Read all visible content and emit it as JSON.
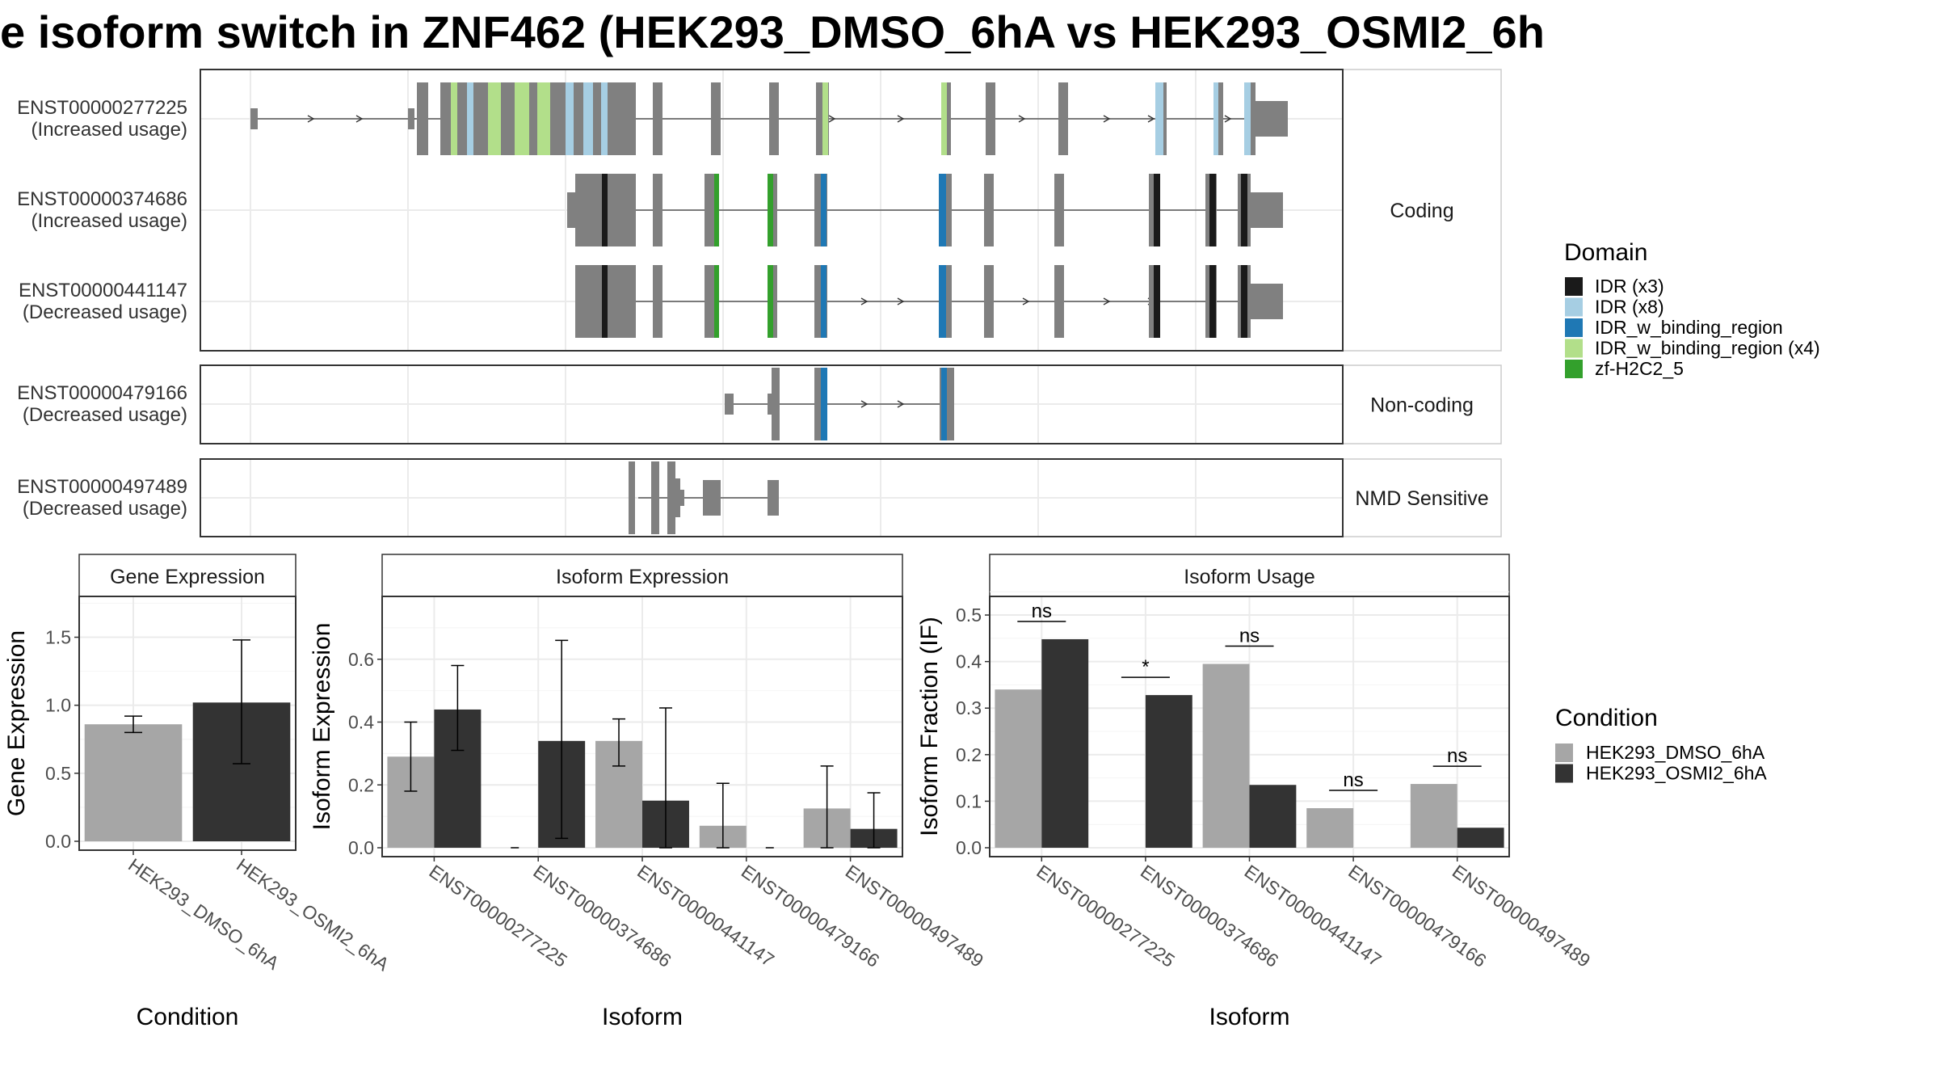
{
  "title": "e isoform switch in ZNF462 (HEK293_DMSO_6hA vs HEK293_OSMI2_6h",
  "colors": {
    "exon": "#808080",
    "dmso": "#a6a6a6",
    "osmi": "#333333",
    "IDR": "#1a1a1a",
    "IDR_light": "#a6cee3",
    "IDR_w_binding_region": "#1f78b4",
    "IDR_w_binding_region_light": "#b2df8a",
    "zf-H2C2_5": "#33a02c"
  },
  "transcript_plot": {
    "groups": [
      {
        "label": "Coding",
        "isoforms": [
          {
            "id": "ENST00000277225",
            "note": "(Increased usage)"
          },
          {
            "id": "ENST00000374686",
            "note": "(Increased usage)"
          },
          {
            "id": "ENST00000441147",
            "note": "(Decreased usage)"
          }
        ]
      },
      {
        "label": "Non-coding",
        "isoforms": [
          {
            "id": "ENST00000479166",
            "note": "(Decreased usage)"
          }
        ]
      },
      {
        "label": "NMD Sensitive",
        "isoforms": [
          {
            "id": "ENST00000497489",
            "note": "(Decreased usage)"
          }
        ]
      }
    ]
  },
  "domain_legend": {
    "title": "Domain",
    "items": [
      {
        "label": "IDR (x3)",
        "color": "#1a1a1a"
      },
      {
        "label": "IDR (x8)",
        "color": "#a6cee3"
      },
      {
        "label": "IDR_w_binding_region",
        "color": "#1f78b4"
      },
      {
        "label": "IDR_w_binding_region (x4)",
        "color": "#b2df8a"
      },
      {
        "label": "zf-H2C2_5",
        "color": "#33a02c"
      }
    ]
  },
  "condition_legend": {
    "title": "Condition",
    "items": [
      {
        "label": "HEK293_DMSO_6hA",
        "color": "#a6a6a6"
      },
      {
        "label": "HEK293_OSMI2_6hA",
        "color": "#333333"
      }
    ]
  },
  "chart_data": [
    {
      "type": "bar",
      "title": "Gene Expression",
      "xlabel": "Condition",
      "ylabel": "Gene Expression",
      "ylim": [
        0,
        1.8
      ],
      "yticks": [
        "0.0",
        "0.5",
        "1.0",
        "1.5"
      ],
      "categories": [
        "HEK293_DMSO_6hA",
        "HEK293_OSMI2_6hA"
      ],
      "values": [
        0.86,
        1.02
      ],
      "errors": [
        [
          0.8,
          0.92
        ],
        [
          0.57,
          1.48
        ]
      ]
    },
    {
      "type": "bar",
      "title": "Isoform Expression",
      "xlabel": "Isoform",
      "ylabel": "Isoform Expression",
      "ylim": [
        0,
        0.8
      ],
      "yticks": [
        "0.0",
        "0.2",
        "0.4",
        "0.6"
      ],
      "categories": [
        "ENST00000277225",
        "ENST00000374686",
        "ENST00000441147",
        "ENST00000479166",
        "ENST00000497489"
      ],
      "series": [
        {
          "values": [
            0.29,
            0.0,
            0.34,
            0.07,
            0.125
          ],
          "errors": [
            [
              0.18,
              0.4
            ],
            [
              0.0,
              0.0
            ],
            [
              0.26,
              0.41
            ],
            [
              0.0,
              0.205
            ],
            [
              0.0,
              0.26
            ]
          ]
        },
        {
          "values": [
            0.44,
            0.34,
            0.15,
            0.0,
            0.06
          ],
          "errors": [
            [
              0.31,
              0.58
            ],
            [
              0.03,
              0.66
            ],
            [
              0.0,
              0.445
            ],
            [
              0.0,
              0.0
            ],
            [
              0.0,
              0.175
            ]
          ]
        }
      ]
    },
    {
      "type": "bar",
      "title": "Isoform Usage",
      "xlabel": "Isoform",
      "ylabel": "Isoform Fraction (IF)",
      "ylim": [
        0,
        0.54
      ],
      "yticks": [
        "0.0",
        "0.1",
        "0.2",
        "0.3",
        "0.4",
        "0.5"
      ],
      "categories": [
        "ENST00000277225",
        "ENST00000374686",
        "ENST00000441147",
        "ENST00000479166",
        "ENST00000497489"
      ],
      "series": [
        {
          "values": [
            0.34,
            0.0,
            0.395,
            0.085,
            0.137
          ]
        },
        {
          "values": [
            0.448,
            0.328,
            0.135,
            0.0,
            0.043
          ]
        }
      ],
      "annotations": [
        "ns",
        "*",
        "ns",
        "ns",
        "ns"
      ]
    }
  ]
}
